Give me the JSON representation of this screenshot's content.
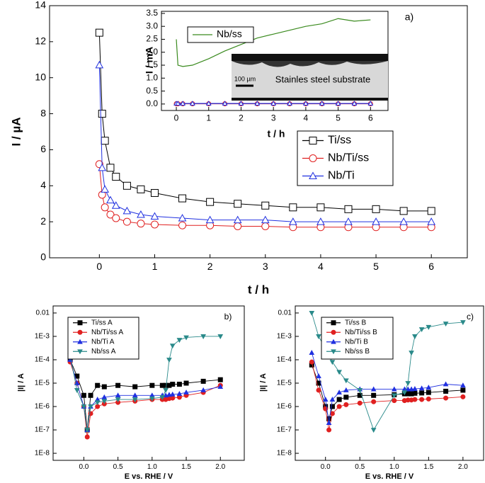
{
  "chart_data": [
    {
      "type": "line",
      "panel_label": "a)",
      "xlabel": "t / h",
      "ylabel": "I / µA",
      "x": [
        0,
        0.05,
        0.1,
        0.2,
        0.3,
        0.5,
        0.75,
        1,
        1.5,
        2,
        2.5,
        3,
        3.5,
        4,
        4.5,
        5,
        5.5,
        6
      ],
      "xlim": [
        -0.9,
        6.65
      ],
      "xticks": [
        0,
        1,
        2,
        3,
        4,
        5,
        6
      ],
      "ylim": [
        0,
        14
      ],
      "yticks": [
        0,
        2,
        4,
        6,
        8,
        10,
        12,
        14
      ],
      "legend": "center right",
      "marker_style": "open",
      "series": [
        {
          "name": "Ti/ss",
          "color": "#000000",
          "marker": "square",
          "values": [
            12.5,
            8,
            6.5,
            5,
            4.5,
            4,
            3.8,
            3.6,
            3.3,
            3.1,
            3,
            2.9,
            2.8,
            2.8,
            2.7,
            2.7,
            2.6,
            2.6
          ]
        },
        {
          "name": "Nb/Ti/ss",
          "color": "#e02020",
          "marker": "circle",
          "values": [
            5.2,
            3.5,
            2.8,
            2.4,
            2.2,
            2,
            1.9,
            1.85,
            1.8,
            1.8,
            1.75,
            1.75,
            1.7,
            1.7,
            1.7,
            1.7,
            1.7,
            1.7
          ]
        },
        {
          "name": "Nb/Ti",
          "color": "#2030e0",
          "marker": "triangle",
          "values": [
            10.7,
            5,
            3.8,
            3.2,
            2.9,
            2.6,
            2.4,
            2.3,
            2.2,
            2.1,
            2.1,
            2.1,
            2,
            2,
            2,
            2,
            2,
            2
          ]
        }
      ]
    },
    {
      "type": "line",
      "xlabel": "t / h",
      "ylabel": "I / mA",
      "image_labels": [
        "100 µm",
        "Stainles steel substrate"
      ],
      "x": [
        0,
        0.05,
        0.2,
        0.5,
        1,
        1.5,
        2,
        2.5,
        3,
        3.5,
        4,
        4.5,
        5,
        5.5,
        6
      ],
      "xlim": [
        -0.46,
        6.54
      ],
      "xticks": [
        0,
        1,
        2,
        3,
        4,
        5,
        6
      ],
      "ylim": [
        -0.25,
        3.58
      ],
      "yticks": [
        {
          "value": 0,
          "label": "0.0"
        },
        0.5,
        {
          "value": 1,
          "label": "1.0"
        },
        1.5,
        {
          "value": 2,
          "label": "2.0"
        },
        2.5,
        {
          "value": 3,
          "label": "3.0"
        },
        3.5
      ],
      "legend": "upper left",
      "marker_style": "open",
      "series": [
        {
          "name": "Nb/ss",
          "color": "#3a8a1e",
          "values": [
            2.5,
            1.5,
            1.45,
            1.5,
            1.75,
            2.05,
            2.3,
            2.55,
            2.7,
            2.85,
            3,
            3.1,
            3.3,
            3.2,
            3.25
          ]
        },
        {
          "color": "#e02020",
          "marker": "circle",
          "values": [
            0.01,
            0.01,
            0.01,
            0.01,
            0.01,
            0.01,
            0.01,
            0.01,
            0.01,
            0.01,
            0.01,
            0.01,
            0.01,
            0.01,
            0.01
          ]
        },
        {
          "color": "#2030e0",
          "marker": "triangle",
          "values": [
            0.02,
            0.02,
            0.02,
            0.02,
            0.02,
            0.02,
            0.02,
            0.02,
            0.02,
            0.02,
            0.02,
            0.02,
            0.02,
            0.02,
            0.02
          ]
        }
      ]
    },
    {
      "type": "line",
      "panel_label": "b)",
      "xlabel": "E vs. RHE / V",
      "ylabel": "|I| / A",
      "yscale": "log",
      "x": [
        -0.2,
        -0.1,
        0,
        0.05,
        0.1,
        0.2,
        0.3,
        0.5,
        0.75,
        1,
        1.15,
        1.2,
        1.25,
        1.3,
        1.4,
        1.5,
        1.75,
        2
      ],
      "xlim": [
        -0.45,
        2.35
      ],
      "xticks": [
        {
          "value": 0,
          "label": "0.0"
        },
        0.5,
        {
          "value": 1,
          "label": "1.0"
        },
        1.5,
        {
          "value": 2,
          "label": "2.0"
        }
      ],
      "ylim": [
        5e-09,
        0.02
      ],
      "yticks": [
        {
          "value": 1e-08,
          "label": "1E-8"
        },
        {
          "value": 1e-07,
          "label": "1E-7"
        },
        {
          "value": 1e-06,
          "label": "1E-6"
        },
        {
          "value": 1e-05,
          "label": "1E-5"
        },
        {
          "value": 0.0001,
          "label": "1E-4"
        },
        {
          "value": 0.001,
          "label": "1E-3"
        },
        0.01
      ],
      "legend": "upper left",
      "marker_style": "filled",
      "series": [
        {
          "name": "Ti/ss A",
          "color": "#000000",
          "marker": "square",
          "values": [
            0.0001,
            2e-05,
            3e-06,
            1e-07,
            3e-06,
            8e-06,
            7e-06,
            8e-06,
            7e-06,
            8e-06,
            8e-06,
            8e-06,
            8e-06,
            9e-06,
            9e-06,
            1e-05,
            1.2e-05,
            1.4e-05
          ]
        },
        {
          "name": "Nb/Ti/ss A",
          "color": "#e02020",
          "marker": "circle",
          "values": [
            8e-05,
            1e-05,
            1e-06,
            5e-08,
            5e-07,
            1e-06,
            1.3e-06,
            1.5e-06,
            1.7e-06,
            2e-06,
            2e-06,
            2e-06,
            2.2e-06,
            2.3e-06,
            2.5e-06,
            3e-06,
            4e-06,
            8e-06
          ]
        },
        {
          "name": "Nb/Ti A",
          "color": "#2030e0",
          "marker": "triangle",
          "values": [
            0.0001,
            1e-05,
            1e-06,
            1e-07,
            1e-06,
            2e-06,
            2.5e-06,
            3e-06,
            3e-06,
            3e-06,
            3e-06,
            3e-06,
            3.2e-06,
            3.3e-06,
            3.5e-06,
            4e-06,
            5e-06,
            7e-06
          ]
        },
        {
          "name": "Nb/ss A",
          "color": "#2a8a8a",
          "marker": "triangle-down",
          "values": [
            0.00015,
            5e-06,
            1e-06,
            1e-07,
            1e-06,
            1.5e-06,
            1.7e-06,
            2e-06,
            2e-06,
            2.2e-06,
            2.5e-06,
            5e-06,
            0.0001,
            0.0004,
            0.0007,
            0.0009,
            0.001,
            0.001
          ]
        }
      ]
    },
    {
      "type": "line",
      "panel_label": "c)",
      "xlabel": "E vs. RHE / V",
      "ylabel": "|I| / A",
      "yscale": "log",
      "x": [
        -0.2,
        -0.1,
        0,
        0.05,
        0.1,
        0.2,
        0.3,
        0.5,
        0.7,
        1,
        1.15,
        1.2,
        1.25,
        1.3,
        1.4,
        1.5,
        1.75,
        2
      ],
      "xlim": [
        -0.44,
        2.3
      ],
      "xticks": [
        {
          "value": 0,
          "label": "0.0"
        },
        0.5,
        {
          "value": 1,
          "label": "1.0"
        },
        1.5,
        {
          "value": 2,
          "label": "2.0"
        }
      ],
      "ylim": [
        5e-09,
        0.02
      ],
      "yticks": [
        {
          "value": 1e-08,
          "label": "1E-8"
        },
        {
          "value": 1e-07,
          "label": "1E-7"
        },
        {
          "value": 1e-06,
          "label": "1E-6"
        },
        {
          "value": 1e-05,
          "label": "1E-5"
        },
        {
          "value": 0.0001,
          "label": "1E-4"
        },
        {
          "value": 0.001,
          "label": "1E-3"
        },
        0.01
      ],
      "legend": "upper left",
      "marker_style": "filled",
      "series": [
        {
          "name": "Ti/ss B",
          "color": "#000000",
          "marker": "square",
          "values": [
            6e-05,
            1e-05,
            1e-06,
            3e-07,
            1e-06,
            2e-06,
            2.5e-06,
            3e-06,
            3e-06,
            3.2e-06,
            3.5e-06,
            3.5e-06,
            3.5e-06,
            3.7e-06,
            3.8e-06,
            4e-06,
            4.5e-06,
            5e-06
          ]
        },
        {
          "name": "Nb/Ti/ss B",
          "color": "#e02020",
          "marker": "circle",
          "values": [
            8e-05,
            5e-06,
            8e-07,
            1e-07,
            5e-07,
            1e-06,
            1.2e-06,
            1.4e-06,
            1.6e-06,
            1.8e-06,
            1.8e-06,
            1.9e-06,
            1.9e-06,
            2e-06,
            2e-06,
            2.1e-06,
            2.3e-06,
            2.6e-06
          ]
        },
        {
          "name": "Nb/Ti B",
          "color": "#2030e0",
          "marker": "triangle",
          "values": [
            0.0002,
            2e-05,
            2e-06,
            2e-07,
            2e-06,
            4e-06,
            5e-06,
            5.5e-06,
            5.5e-06,
            5.5e-06,
            5.5e-06,
            5.5e-06,
            5.5e-06,
            5.7e-06,
            6e-06,
            6.5e-06,
            9e-06,
            8e-06
          ]
        },
        {
          "name": "Nb/ss B",
          "color": "#2a8a8a",
          "marker": "triangle-down",
          "values": [
            0.01,
            0.001,
            0.0003,
            0.00015,
            8e-05,
            3e-05,
            1.3e-05,
            5e-06,
            1e-07,
            3e-06,
            4e-06,
            1e-05,
            0.0002,
            0.001,
            0.002,
            0.0025,
            0.0035,
            0.004
          ]
        }
      ]
    }
  ]
}
